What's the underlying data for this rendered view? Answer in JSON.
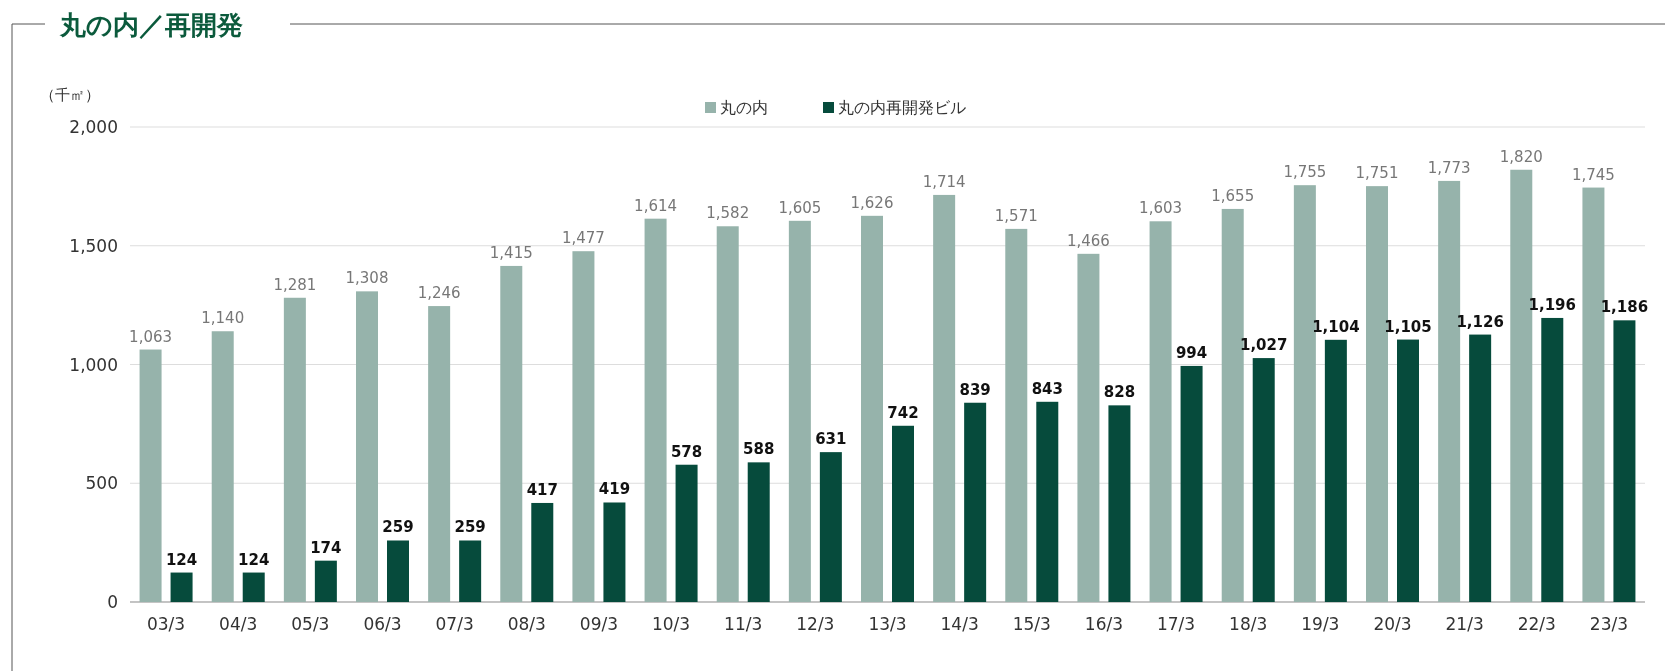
{
  "chart_data": {
    "type": "bar",
    "title": "丸の内／再開発",
    "ylabel": "（千㎡）",
    "categories": [
      "03/3",
      "04/3",
      "05/3",
      "06/3",
      "07/3",
      "08/3",
      "09/3",
      "10/3",
      "11/3",
      "12/3",
      "13/3",
      "14/3",
      "15/3",
      "16/3",
      "17/3",
      "18/3",
      "19/3",
      "20/3",
      "21/3",
      "22/3",
      "23/3"
    ],
    "series": [
      {
        "name": "丸の内",
        "color": "#96b3ab",
        "values": [
          1063,
          1140,
          1281,
          1308,
          1246,
          1415,
          1477,
          1614,
          1582,
          1605,
          1626,
          1714,
          1571,
          1466,
          1603,
          1655,
          1755,
          1751,
          1773,
          1820,
          1745
        ],
        "value_labels": [
          "1,063",
          "1,140",
          "1,281",
          "1,308",
          "1,246",
          "1,415",
          "1,477",
          "1,614",
          "1,582",
          "1,605",
          "1,626",
          "1,714",
          "1,571",
          "1,466",
          "1,603",
          "1,655",
          "1,755",
          "1,751",
          "1,773",
          "1,820",
          "1,745"
        ]
      },
      {
        "name": "丸の内再開発ビル",
        "color": "#064b3c",
        "values": [
          124,
          124,
          174,
          259,
          259,
          417,
          419,
          578,
          588,
          631,
          742,
          839,
          843,
          828,
          994,
          1027,
          1104,
          1105,
          1126,
          1196,
          1186
        ],
        "value_labels": [
          "124",
          "124",
          "174",
          "259",
          "259",
          "417",
          "419",
          "578",
          "588",
          "631",
          "742",
          "839",
          "843",
          "828",
          "994",
          "1,027",
          "1,104",
          "1,105",
          "1,126",
          "1,196",
          "1,186"
        ]
      }
    ],
    "ylim": [
      0,
      2000
    ],
    "yticks": [
      0,
      {
        "value": 500,
        "label": "500"
      },
      {
        "value": 1000,
        "label": "1,000"
      },
      {
        "value": 1500,
        "label": "1,500"
      },
      {
        "value": 2000,
        "label": "2,000"
      }
    ],
    "grid": "y",
    "legend": "top"
  }
}
